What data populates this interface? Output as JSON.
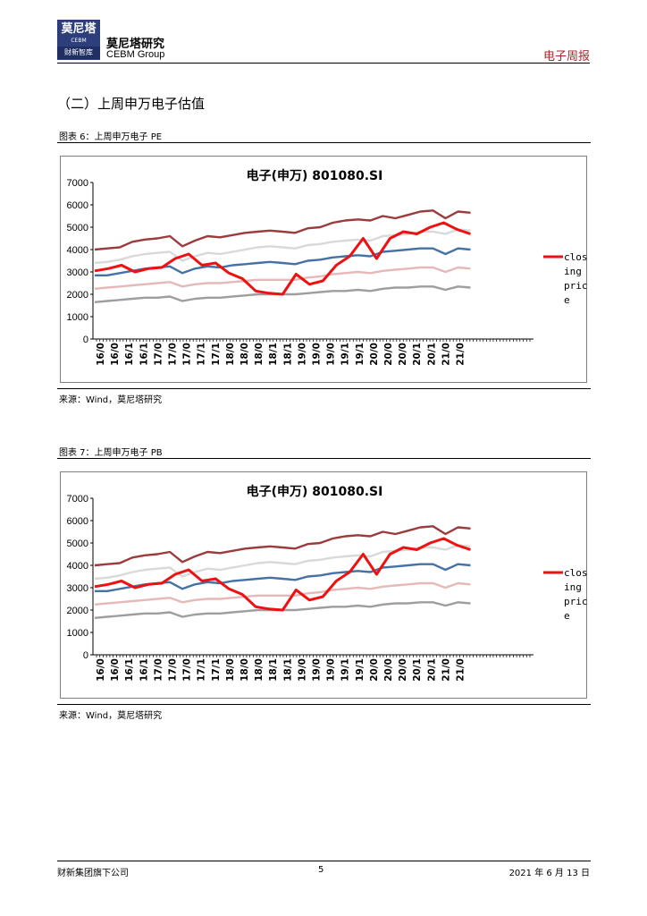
{
  "header": {
    "logo_line1": "莫尼塔",
    "logo_line2": "CEBM",
    "logo_line3": "财新智库",
    "brand_cn": "莫尼塔研究",
    "brand_en": "CEBM Group",
    "report_type": "电子周报",
    "accent_color": "#b2222a"
  },
  "section_title": "（二）上周申万电子估值",
  "figures": [
    {
      "caption": "图表 6：上周申万电子 PE",
      "source": "来源：Wind，莫尼塔研究"
    },
    {
      "caption": "图表 7：上周申万电子 PB",
      "source": "来源：Wind，莫尼塔研究"
    }
  ],
  "chart_data": [
    {
      "type": "line",
      "title": "电子(申万) 801080.SI",
      "ylim": [
        0,
        7000
      ],
      "yticks": [
        0,
        1000,
        2000,
        3000,
        4000,
        5000,
        6000,
        7000
      ],
      "xticks": [
        "16/0",
        "16/0",
        "16/1",
        "16/1",
        "17/0",
        "17/0",
        "17/0",
        "17/1",
        "17/1",
        "18/0",
        "18/0",
        "18/0",
        "18/1",
        "18/1",
        "19/0",
        "19/0",
        "19/0",
        "19/1",
        "19/1",
        "20/0",
        "20/0",
        "20/0",
        "20/1",
        "20/1",
        "21/0",
        "21/0"
      ],
      "legend": {
        "position": "right",
        "label_lines": [
          "clos",
          "ing",
          "pric",
          "e"
        ]
      },
      "series": [
        {
          "name": "closing price",
          "color": "#ee1111",
          "width": 3,
          "values": [
            3050,
            3150,
            3300,
            3000,
            3150,
            3200,
            3600,
            3800,
            3300,
            3400,
            2950,
            2700,
            2150,
            2050,
            2000,
            2900,
            2450,
            2600,
            3300,
            3700,
            4500,
            3600,
            4500,
            4800,
            4700,
            5000,
            5200,
            4900,
            4700
          ]
        },
        {
          "color": "#9b3b3b",
          "width": 2.4,
          "values": [
            4000,
            4050,
            4100,
            4350,
            4450,
            4500,
            4600,
            4150,
            4400,
            4600,
            4550,
            4650,
            4750,
            4800,
            4850,
            4800,
            4750,
            4950,
            5000,
            5200,
            5300,
            5350,
            5300,
            5500,
            5400,
            5550,
            5700,
            5750,
            5400,
            5700,
            5650
          ]
        },
        {
          "color": "#d9d9d9",
          "width": 2.4,
          "values": [
            3400,
            3450,
            3550,
            3700,
            3800,
            3850,
            3900,
            3500,
            3700,
            3850,
            3800,
            3900,
            4000,
            4100,
            4150,
            4100,
            4050,
            4200,
            4250,
            4350,
            4400,
            4450,
            4400,
            4600,
            4650,
            4700,
            4800,
            4800,
            4700,
            4900,
            4850
          ]
        },
        {
          "color": "#4472a8",
          "width": 2.4,
          "values": [
            2850,
            2850,
            2950,
            3050,
            3150,
            3200,
            3250,
            2950,
            3150,
            3250,
            3200,
            3300,
            3350,
            3400,
            3450,
            3400,
            3350,
            3500,
            3550,
            3650,
            3700,
            3750,
            3700,
            3900,
            3950,
            4000,
            4050,
            4050,
            3800,
            4050,
            4000
          ]
        },
        {
          "color": "#e6b9b9",
          "width": 2.4,
          "values": [
            2250,
            2300,
            2350,
            2400,
            2450,
            2500,
            2550,
            2350,
            2450,
            2500,
            2500,
            2550,
            2600,
            2650,
            2650,
            2650,
            2650,
            2750,
            2800,
            2900,
            2950,
            3000,
            2950,
            3050,
            3100,
            3150,
            3200,
            3200,
            3000,
            3200,
            3150
          ]
        },
        {
          "color": "#9e9e9e",
          "width": 2.4,
          "values": [
            1650,
            1700,
            1750,
            1800,
            1850,
            1850,
            1900,
            1700,
            1800,
            1850,
            1850,
            1900,
            1950,
            2000,
            2000,
            2000,
            2000,
            2050,
            2100,
            2150,
            2150,
            2200,
            2150,
            2250,
            2300,
            2300,
            2350,
            2350,
            2200,
            2350,
            2300
          ]
        }
      ]
    },
    {
      "type": "line",
      "title": "电子(申万) 801080.SI",
      "ylim": [
        0,
        7000
      ],
      "yticks": [
        0,
        1000,
        2000,
        3000,
        4000,
        5000,
        6000,
        7000
      ],
      "xticks": [
        "16/0",
        "16/0",
        "16/1",
        "16/1",
        "17/0",
        "17/0",
        "17/0",
        "17/1",
        "17/1",
        "18/0",
        "18/0",
        "18/0",
        "18/1",
        "18/1",
        "19/0",
        "19/0",
        "19/0",
        "19/1",
        "19/1",
        "20/0",
        "20/0",
        "20/0",
        "20/1",
        "20/1",
        "21/0",
        "21/0"
      ],
      "legend": {
        "position": "right",
        "label_lines": [
          "clos",
          "ing",
          "pric",
          "e"
        ]
      },
      "series": [
        {
          "name": "closing price",
          "color": "#ee1111",
          "width": 3,
          "values": [
            3050,
            3150,
            3300,
            3000,
            3150,
            3200,
            3600,
            3800,
            3300,
            3400,
            2950,
            2700,
            2150,
            2050,
            2000,
            2900,
            2450,
            2600,
            3300,
            3700,
            4500,
            3600,
            4500,
            4800,
            4700,
            5000,
            5200,
            4900,
            4700
          ]
        },
        {
          "color": "#9b3b3b",
          "width": 2.4,
          "values": [
            4000,
            4050,
            4100,
            4350,
            4450,
            4500,
            4600,
            4150,
            4400,
            4600,
            4550,
            4650,
            4750,
            4800,
            4850,
            4800,
            4750,
            4950,
            5000,
            5200,
            5300,
            5350,
            5300,
            5500,
            5400,
            5550,
            5700,
            5750,
            5400,
            5700,
            5650
          ]
        },
        {
          "color": "#d9d9d9",
          "width": 2.4,
          "values": [
            3400,
            3450,
            3550,
            3700,
            3800,
            3850,
            3900,
            3500,
            3700,
            3850,
            3800,
            3900,
            4000,
            4100,
            4150,
            4100,
            4050,
            4200,
            4250,
            4350,
            4400,
            4450,
            4400,
            4600,
            4650,
            4700,
            4800,
            4800,
            4700,
            4900,
            4850
          ]
        },
        {
          "color": "#4472a8",
          "width": 2.4,
          "values": [
            2850,
            2850,
            2950,
            3050,
            3150,
            3200,
            3250,
            2950,
            3150,
            3250,
            3200,
            3300,
            3350,
            3400,
            3450,
            3400,
            3350,
            3500,
            3550,
            3650,
            3700,
            3750,
            3700,
            3900,
            3950,
            4000,
            4050,
            4050,
            3800,
            4050,
            4000
          ]
        },
        {
          "color": "#e6b9b9",
          "width": 2.4,
          "values": [
            2250,
            2300,
            2350,
            2400,
            2450,
            2500,
            2550,
            2350,
            2450,
            2500,
            2500,
            2550,
            2600,
            2650,
            2650,
            2650,
            2650,
            2750,
            2800,
            2900,
            2950,
            3000,
            2950,
            3050,
            3100,
            3150,
            3200,
            3200,
            3000,
            3200,
            3150
          ]
        },
        {
          "color": "#9e9e9e",
          "width": 2.4,
          "values": [
            1650,
            1700,
            1750,
            1800,
            1850,
            1850,
            1900,
            1700,
            1800,
            1850,
            1850,
            1900,
            1950,
            2000,
            2000,
            2000,
            2000,
            2050,
            2100,
            2150,
            2150,
            2200,
            2150,
            2250,
            2300,
            2300,
            2350,
            2350,
            2200,
            2350,
            2300
          ]
        }
      ]
    }
  ],
  "footer": {
    "left": "财新集团旗下公司",
    "page": "5",
    "date": "2021 年 6 月 13 日"
  }
}
